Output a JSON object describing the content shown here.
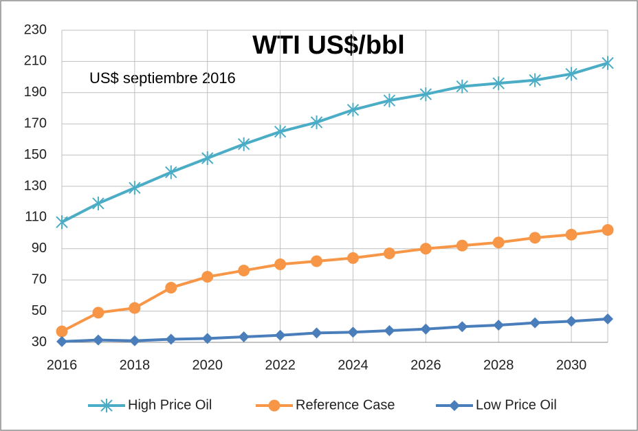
{
  "chart_data": {
    "type": "line",
    "title": "WTI US$/bbl",
    "subtitle": "US$ septiembre 2016",
    "x": [
      2016,
      2017,
      2018,
      2019,
      2020,
      2021,
      2022,
      2023,
      2024,
      2025,
      2026,
      2027,
      2028,
      2029,
      2030,
      2031
    ],
    "xlim": [
      2016,
      2031
    ],
    "xticks": [
      2016,
      2018,
      2020,
      2022,
      2024,
      2026,
      2028,
      2030
    ],
    "ylim": [
      30,
      230
    ],
    "yticks": [
      30,
      50,
      70,
      90,
      110,
      130,
      150,
      170,
      190,
      210,
      230
    ],
    "grid": true,
    "legend": "bottom",
    "series": [
      {
        "name": "High Price Oil",
        "color": "#4bacc6",
        "marker": "asterisk",
        "values": [
          107,
          119,
          129,
          139,
          148,
          157,
          165,
          171,
          179,
          185,
          189,
          194,
          196,
          198,
          202,
          209
        ]
      },
      {
        "name": "Reference Case",
        "color": "#f79646",
        "marker": "circle",
        "values": [
          37,
          49,
          52,
          65,
          72,
          76,
          80,
          82,
          84,
          87,
          90,
          92,
          94,
          97,
          99,
          102
        ]
      },
      {
        "name": "Low Price Oil",
        "color": "#4a7ebb",
        "marker": "diamond",
        "values": [
          30.5,
          31.5,
          31,
          32,
          32.5,
          33.5,
          34.5,
          36,
          36.5,
          37.5,
          38.5,
          40,
          41,
          42.5,
          43.5,
          45
        ]
      }
    ]
  }
}
